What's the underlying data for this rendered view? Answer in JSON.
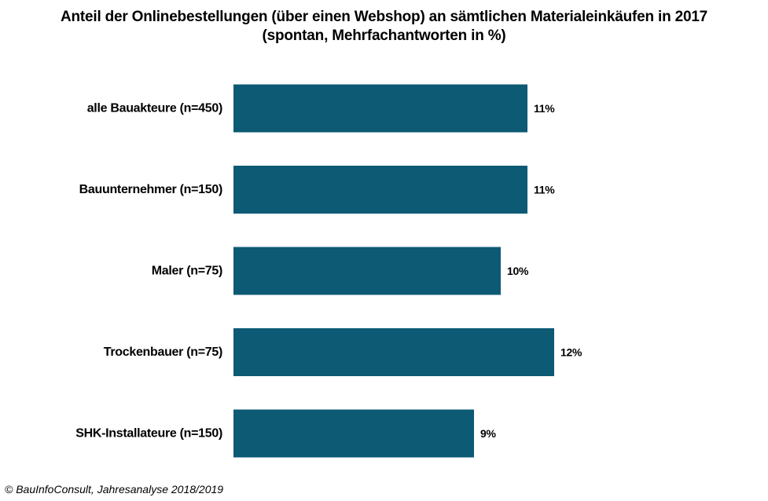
{
  "chart_data": {
    "type": "bar",
    "orientation": "horizontal",
    "title": "Anteil der Onlinebestellungen  (über einen Webshop) an sämtlichen Materialeinkäufen  in 2017",
    "subtitle": "(spontan, Mehrfachantworten in %)",
    "categories": [
      "alle Bauakteure (n=450)",
      "Bauunternehmer (n=150)",
      "Maler (n=75)",
      "Trockenbauer (n=75)",
      "SHK-Installateure (n=150)"
    ],
    "values": [
      11,
      11,
      10,
      12,
      9
    ],
    "value_labels": [
      "11%",
      "11%",
      "10%",
      "12%",
      "9%"
    ],
    "xlim": [
      0,
      20
    ],
    "grid": false,
    "legend": "none",
    "bar_color": "#0d5a75"
  },
  "footer": {
    "source": "© BauInfoConsult, Jahresanalyse 2018/2019"
  }
}
